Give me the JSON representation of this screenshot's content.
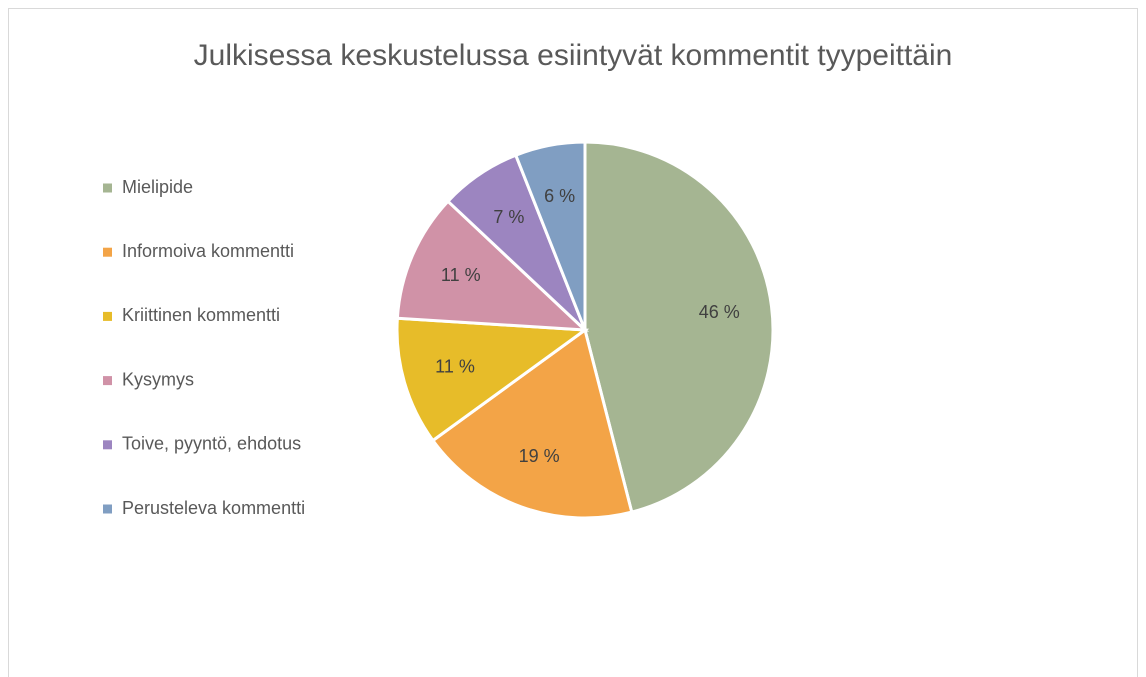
{
  "chart_data": {
    "type": "pie",
    "title": "Julkisessa keskustelussa esiintyvät kommentit tyypeittäin",
    "categories": [
      "Mielipide",
      "Informoiva kommentti",
      "Kriittinen kommentti",
      "Kysymys",
      "Toive, pyyntö, ehdotus",
      "Perusteleva kommentti"
    ],
    "values": [
      46,
      19,
      11,
      11,
      7,
      6
    ],
    "value_labels": [
      "46 %",
      "19 %",
      "11 %",
      "11 %",
      "7 %",
      "6 %"
    ],
    "colors": [
      "#a5b592",
      "#f3a447",
      "#e7bc29",
      "#d092a7",
      "#9c85c0",
      "#809ec2"
    ],
    "legend": "left"
  }
}
